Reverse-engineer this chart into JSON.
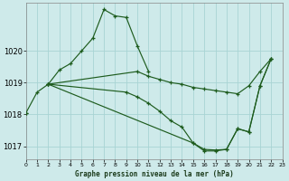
{
  "title": "Graphe pression niveau de la mer (hPa)",
  "bg": "#ceeaea",
  "grid_color": "#a8d4d4",
  "line_color": "#1e5c1e",
  "xlim": [
    0,
    23
  ],
  "ylim": [
    1016.6,
    1021.5
  ],
  "yticks": [
    1017,
    1018,
    1019,
    1020
  ],
  "xticks": [
    0,
    1,
    2,
    3,
    4,
    5,
    6,
    7,
    8,
    9,
    10,
    11,
    12,
    13,
    14,
    15,
    16,
    17,
    18,
    19,
    20,
    21,
    22,
    23
  ],
  "series": [
    {
      "x": [
        0,
        1,
        2,
        3,
        4,
        5,
        6,
        7,
        8,
        9,
        10,
        11
      ],
      "y": [
        1018.05,
        1018.7,
        1018.95,
        1019.4,
        1019.6,
        1020.0,
        1020.4,
        1021.3,
        1021.1,
        1021.05,
        1020.15,
        1019.35
      ]
    },
    {
      "x": [
        2,
        10,
        11,
        12,
        13,
        14,
        15,
        16,
        17,
        18,
        19,
        20,
        21,
        22
      ],
      "y": [
        1018.95,
        1019.35,
        1019.2,
        1019.1,
        1019.0,
        1018.95,
        1018.85,
        1018.8,
        1018.75,
        1018.7,
        1018.65,
        1018.9,
        1019.35,
        1019.75
      ]
    },
    {
      "x": [
        2,
        9,
        10,
        11,
        12,
        13,
        14,
        15,
        16,
        17,
        18,
        19,
        20,
        21,
        22
      ],
      "y": [
        1018.95,
        1018.7,
        1018.55,
        1018.35,
        1018.1,
        1017.8,
        1017.6,
        1017.1,
        1016.9,
        1016.88,
        1016.9,
        1017.55,
        1017.45,
        1018.9,
        1019.75
      ]
    },
    {
      "x": [
        2,
        15,
        16,
        17,
        18,
        19,
        20,
        21,
        22
      ],
      "y": [
        1018.95,
        1017.1,
        1016.85,
        1016.85,
        1016.9,
        1017.55,
        1017.45,
        1018.9,
        1019.75
      ]
    }
  ]
}
